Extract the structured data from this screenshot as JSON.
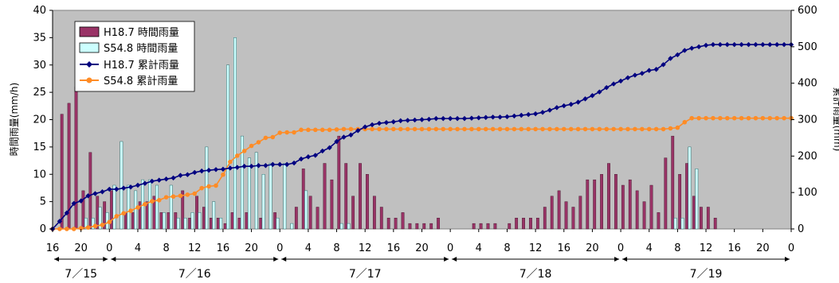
{
  "chart_data": {
    "type": "bar+line",
    "title": "",
    "ylabel_left": "時間雨量(mm/h)",
    "ylabel_right": "累計雨量(mm)",
    "ylim_left": [
      0,
      40
    ],
    "ylim_right": [
      0,
      600
    ],
    "yticks_left": [
      0,
      5,
      10,
      15,
      20,
      25,
      30,
      35,
      40
    ],
    "yticks_right": [
      0,
      100,
      200,
      300,
      400,
      500,
      600
    ],
    "x_hour_ticks": [
      "16",
      "20",
      "0",
      "4",
      "8",
      "12",
      "16",
      "20",
      "0",
      "4",
      "8",
      "12",
      "16",
      "20",
      "0",
      "4",
      "8",
      "12",
      "16",
      "20",
      "0",
      "4",
      "8",
      "12",
      "16",
      "20",
      "0"
    ],
    "date_labels": [
      "7／15",
      "7／16",
      "7／17",
      "7／18",
      "7／19"
    ],
    "legend": [
      "H18.7 時間雨量",
      "S54.8 時間雨量",
      "H18.7 累計雨量",
      "S54.8 累計雨量"
    ],
    "grid": false,
    "legend_position": "top-left",
    "colors": {
      "plot_bg": "#c0c0c0",
      "h18_bar": "#993366",
      "s54_bar": "#ccffff",
      "h18_line": "#000080",
      "s54_line": "#ff8c26"
    },
    "series": [
      {
        "name": "H18.7 時間雨量",
        "kind": "bar",
        "axis": "left",
        "values": [
          0,
          21,
          23,
          26,
          7,
          14,
          6,
          5,
          7,
          0,
          3,
          3,
          5,
          5,
          6,
          3,
          3,
          3,
          7,
          2,
          6,
          4,
          2,
          2,
          1,
          3,
          2,
          3,
          0,
          2,
          0,
          3,
          0,
          0,
          4,
          11,
          6,
          4,
          12,
          9,
          17,
          12,
          6,
          12,
          10,
          6,
          4,
          2,
          2,
          3,
          1,
          1,
          1,
          1,
          2,
          0,
          0,
          0,
          0,
          1,
          1,
          1,
          1,
          0,
          1,
          2,
          2,
          2,
          2,
          4,
          6,
          7,
          5,
          4,
          6,
          9,
          9,
          10,
          12,
          10,
          8,
          9,
          7,
          5,
          8,
          3,
          13,
          17,
          10,
          12,
          6,
          4,
          4,
          2,
          0,
          0,
          0,
          0,
          0,
          0,
          0,
          0,
          0,
          0,
          0,
          0,
          0,
          0,
          0,
          0,
          0,
          0,
          0,
          0,
          0,
          1
        ]
      },
      {
        "name": "S54.8 時間雨量",
        "kind": "bar",
        "axis": "left",
        "values": [
          0,
          0,
          0,
          0,
          2,
          2,
          4,
          3,
          8,
          16,
          8,
          7,
          9,
          9,
          8,
          3,
          8,
          2,
          2,
          3,
          3,
          15,
          5,
          2,
          30,
          35,
          17,
          13,
          14,
          10,
          12,
          2,
          12,
          1,
          0,
          7,
          0,
          0,
          0,
          0,
          1,
          1,
          0,
          0,
          0,
          0,
          0,
          0,
          0,
          0,
          0,
          0,
          0,
          0,
          0,
          0,
          0,
          0,
          0,
          0,
          0,
          0,
          0,
          0,
          0,
          0,
          0,
          0,
          0,
          0,
          0,
          0,
          0,
          0,
          0,
          0,
          0,
          0,
          0,
          0,
          0,
          0,
          0,
          0,
          0,
          0,
          0,
          2,
          2,
          15,
          11,
          0,
          0,
          0,
          0,
          0,
          0,
          0,
          0,
          0,
          0,
          0,
          0,
          0,
          0,
          0,
          0,
          1,
          2,
          8,
          2,
          8,
          13,
          3,
          1,
          0
        ]
      },
      {
        "name": "H18.7 累計雨量",
        "kind": "line",
        "axis": "right",
        "values": [
          0,
          21,
          44,
          70,
          77,
          91,
          97,
          102,
          109,
          109,
          112,
          115,
          120,
          125,
          131,
          134,
          137,
          140,
          147,
          149,
          155,
          159,
          161,
          163,
          164,
          167,
          169,
          172,
          172,
          174,
          174,
          177,
          177,
          177,
          181,
          192,
          198,
          202,
          214,
          223,
          240,
          252,
          258,
          270,
          280,
          286,
          290,
          292,
          294,
          297,
          298,
          299,
          300,
          301,
          303,
          303,
          303,
          303,
          303,
          304,
          305,
          306,
          307,
          307,
          308,
          310,
          312,
          314,
          316,
          320,
          326,
          333,
          338,
          342,
          348,
          357,
          366,
          376,
          388,
          398,
          406,
          415,
          422,
          427,
          435,
          438,
          451,
          468,
          478,
          490,
          496,
          500,
          504,
          506,
          506,
          506,
          506,
          506,
          506,
          506,
          506,
          506,
          506,
          506,
          506,
          506,
          506,
          506,
          506,
          506,
          506,
          506,
          506,
          506,
          506,
          507
        ]
      },
      {
        "name": "S54.8 累計雨量",
        "kind": "line",
        "axis": "right",
        "values": [
          0,
          0,
          0,
          0,
          2,
          4,
          8,
          11,
          19,
          35,
          43,
          50,
          59,
          68,
          76,
          79,
          87,
          89,
          91,
          94,
          97,
          112,
          117,
          119,
          149,
          184,
          201,
          214,
          228,
          238,
          250,
          252,
          264,
          265,
          265,
          272,
          272,
          272,
          272,
          272,
          273,
          274,
          274,
          274,
          274,
          274,
          274,
          274,
          274,
          274,
          274,
          274,
          274,
          274,
          274,
          274,
          274,
          274,
          274,
          274,
          274,
          274,
          274,
          274,
          274,
          274,
          274,
          274,
          274,
          274,
          274,
          274,
          274,
          274,
          274,
          274,
          274,
          274,
          274,
          274,
          274,
          274,
          274,
          274,
          274,
          274,
          274,
          276,
          278,
          293,
          304,
          304,
          304,
          304,
          304,
          304,
          304,
          304,
          304,
          304,
          304,
          304,
          304,
          304,
          304,
          304,
          304,
          305,
          307,
          315,
          317,
          325,
          338,
          341,
          342,
          342
        ]
      }
    ]
  }
}
